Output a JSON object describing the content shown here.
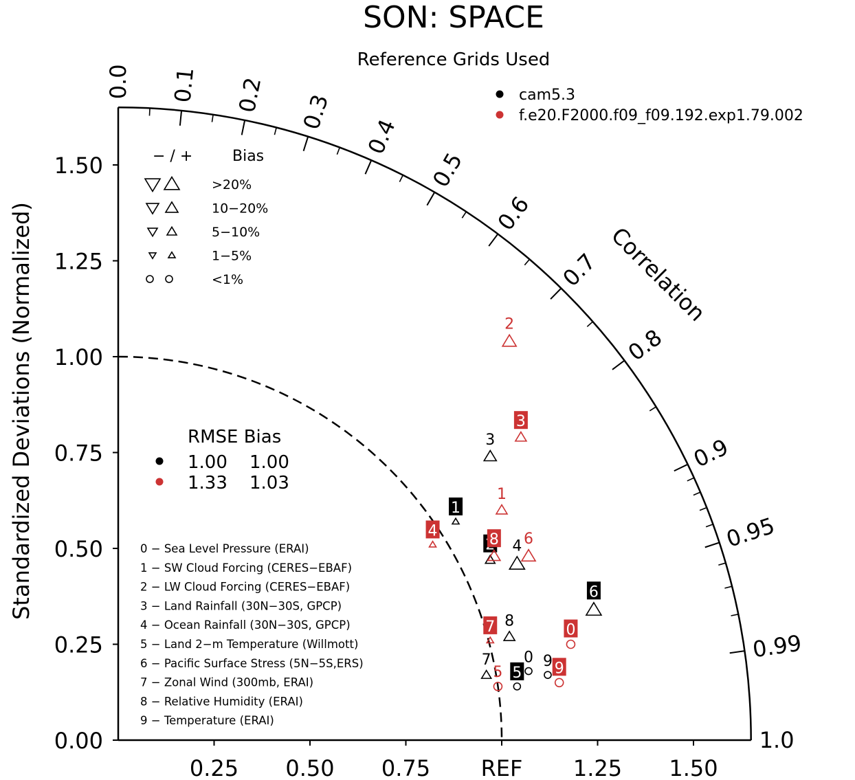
{
  "colors": {
    "model1": "#000000",
    "model2": "#cc3333"
  },
  "chart_data": {
    "type": "scatter",
    "subtype": "taylor-diagram",
    "title": "SON: SPACE",
    "subtitle": "Reference Grids Used",
    "ylabel": "Standardized Deviations (Normalized)",
    "xtick_labels": [
      "0.25",
      "0.50",
      "0.75",
      "REF",
      "1.25",
      "1.50"
    ],
    "ytick_labels": [
      "0.00",
      "0.25",
      "0.50",
      "0.75",
      "1.00",
      "1.25",
      "1.50"
    ],
    "sd_range": [
      0,
      1.65
    ],
    "correlation_axis_label": "Correlation",
    "correlation_ticks": [
      "0.0",
      "0.1",
      "0.2",
      "0.3",
      "0.4",
      "0.5",
      "0.6",
      "0.7",
      "0.8",
      "0.9",
      "0.95",
      "0.99",
      "1.0"
    ],
    "reference_arc_sd": 1.0,
    "legend_models": {
      "items": [
        {
          "name": "cam5.3",
          "color": "#000000"
        },
        {
          "name": "f.e20.F2000.f09_f09.192.exp1.79.002",
          "color": "#cc3333"
        }
      ]
    },
    "bias_legend": {
      "header_sign": "−  /  +",
      "header_label": "Bias",
      "rows": [
        {
          "label": ">20%",
          "shape": "triangle",
          "size": 11
        },
        {
          "label": "10−20%",
          "shape": "triangle",
          "size": 9
        },
        {
          "label": "5−10%",
          "shape": "triangle",
          "size": 7
        },
        {
          "label": "1−5%",
          "shape": "triangle",
          "size": 5
        },
        {
          "label": "<1%",
          "shape": "circle",
          "size": 5
        }
      ]
    },
    "summary_table": {
      "header": "RMSE  Bias",
      "rows": [
        {
          "color": "#000000",
          "rmse": "1.00",
          "bias": "1.00"
        },
        {
          "color": "#cc3333",
          "rmse": "1.33",
          "bias": "1.03"
        }
      ]
    },
    "variables": [
      "0 − Sea Level Pressure (ERAI)",
      "1 − SW Cloud Forcing (CERES−EBAF)",
      "2 − LW Cloud Forcing (CERES−EBAF)",
      "3 − Land Rainfall (30N−30S, GPCP)",
      "4 − Ocean Rainfall (30N−30S, GPCP)",
      "5 − Land 2−m Temperature (Willmott)",
      "6 − Pacific Surface Stress (5N−5S,ERS)",
      "7 − Zonal Wind (300mb, ERAI)",
      "8 − Relative Humidity (ERAI)",
      "9 − Temperature (ERAI)"
    ],
    "series": [
      {
        "name": "cam5.3",
        "color": "#000000",
        "points": [
          {
            "id": "0",
            "x": 1.07,
            "y": 0.18,
            "marker": "circle",
            "size": 5,
            "boxed": false
          },
          {
            "id": "1",
            "x": 0.88,
            "y": 0.57,
            "marker": "triangle",
            "size": 5,
            "boxed": true
          },
          {
            "id": "2",
            "x": 0.97,
            "y": 0.47,
            "marker": "triangle",
            "size": 7,
            "boxed": true
          },
          {
            "id": "3",
            "x": 0.97,
            "y": 0.74,
            "marker": "triangle",
            "size": 9,
            "boxed": false
          },
          {
            "id": "4",
            "x": 1.04,
            "y": 0.46,
            "marker": "triangle",
            "size": 11,
            "boxed": false
          },
          {
            "id": "5",
            "x": 1.04,
            "y": 0.14,
            "marker": "circle",
            "size": 5,
            "boxed": true
          },
          {
            "id": "6",
            "x": 1.24,
            "y": 0.34,
            "marker": "triangle",
            "size": 11,
            "boxed": true
          },
          {
            "id": "7",
            "x": 0.96,
            "y": 0.17,
            "marker": "triangle",
            "size": 7,
            "boxed": false
          },
          {
            "id": "8",
            "x": 1.02,
            "y": 0.27,
            "marker": "triangle",
            "size": 8,
            "boxed": false
          },
          {
            "id": "9",
            "x": 1.12,
            "y": 0.17,
            "marker": "circle",
            "size": 5,
            "boxed": false
          }
        ]
      },
      {
        "name": "f.e20.F2000.f09_f09.192.exp1.79.002",
        "color": "#cc3333",
        "points": [
          {
            "id": "0",
            "x": 1.18,
            "y": 0.25,
            "marker": "circle",
            "size": 6,
            "boxed": true
          },
          {
            "id": "1",
            "x": 1.0,
            "y": 0.6,
            "marker": "triangle",
            "size": 8,
            "boxed": false
          },
          {
            "id": "2",
            "x": 1.02,
            "y": 1.04,
            "marker": "triangle",
            "size": 10,
            "boxed": false
          },
          {
            "id": "3",
            "x": 1.05,
            "y": 0.79,
            "marker": "triangle",
            "size": 8,
            "boxed": true
          },
          {
            "id": "4",
            "x": 0.82,
            "y": 0.51,
            "marker": "triangle",
            "size": 5,
            "boxed": true
          },
          {
            "id": "5",
            "x": 0.99,
            "y": 0.14,
            "marker": "circle",
            "size": 6,
            "boxed": false
          },
          {
            "id": "6",
            "x": 1.07,
            "y": 0.48,
            "marker": "triangle",
            "size": 10,
            "boxed": false
          },
          {
            "id": "7",
            "x": 0.97,
            "y": 0.26,
            "marker": "triangle",
            "size": 5,
            "boxed": true
          },
          {
            "id": "8",
            "x": 0.98,
            "y": 0.48,
            "marker": "triangle",
            "size": 9,
            "boxed": true
          },
          {
            "id": "9",
            "x": 1.15,
            "y": 0.15,
            "marker": "circle",
            "size": 6,
            "boxed": true
          }
        ]
      }
    ]
  }
}
